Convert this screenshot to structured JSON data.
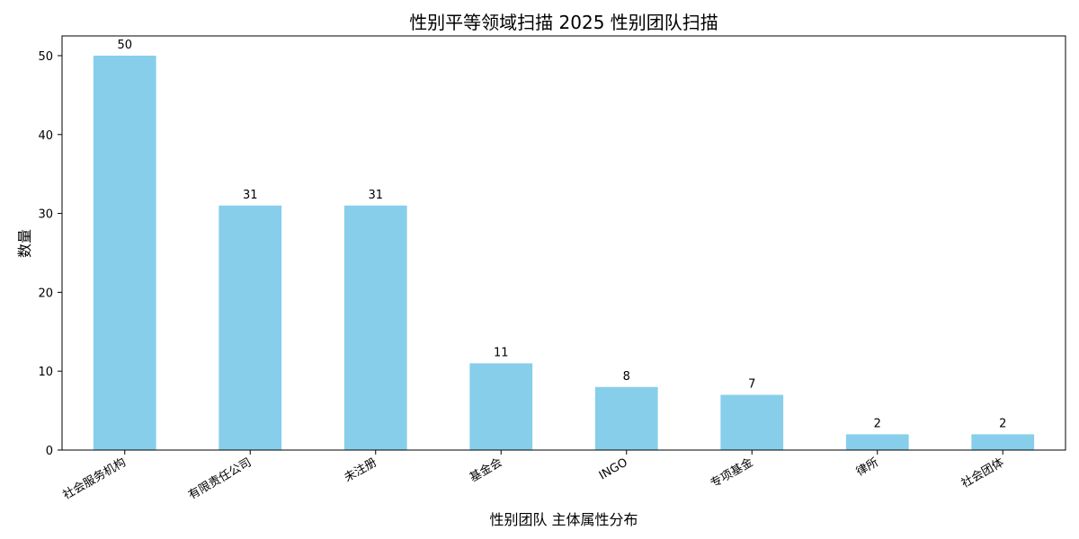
{
  "chart_data": {
    "type": "bar",
    "title": "性别平等领域扫描 2025 性别团队扫描",
    "xlabel": "性别团队 主体属性分布",
    "ylabel": "数量",
    "categories": [
      "社会服务机构",
      "有限责任公司",
      "未注册",
      "基金会",
      "INGO",
      "专项基金",
      "律所",
      "社会团体"
    ],
    "values": [
      50,
      31,
      31,
      11,
      8,
      7,
      2,
      2
    ],
    "ylim": [
      0,
      52.5
    ],
    "yticks": [
      0,
      10,
      20,
      30,
      40,
      50
    ],
    "grid": false,
    "bar_color": "#87ceeb"
  }
}
